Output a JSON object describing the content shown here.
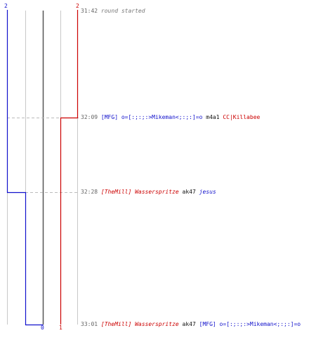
{
  "score_top": {
    "blue": "2",
    "red": "2"
  },
  "score_bottom": {
    "left": "0",
    "right": "1"
  },
  "events": [
    {
      "time": "31:42",
      "message": "round started"
    },
    {
      "time": "32:09",
      "killer": "[MFG] o=[:;:;:>Mikeman<;:;:]=o",
      "weapon": "m4a1",
      "victim": "CC|Killabee"
    },
    {
      "time": "32:28",
      "killer": "[TheMill] Wasserspritze",
      "weapon": "ak47",
      "victim": "jesus"
    },
    {
      "time": "33:01",
      "killer": "[TheMill] Wasserspritze",
      "weapon": "ak47",
      "victim": "[MFG] o=[:;:;:>Mikeman<;:;:]=o"
    }
  ],
  "colors": {
    "team_a": "#1111cc",
    "team_b": "#cc0000",
    "grid": "#c8c8c8",
    "axis": "#555555",
    "event_line": "#bbbbbb"
  }
}
